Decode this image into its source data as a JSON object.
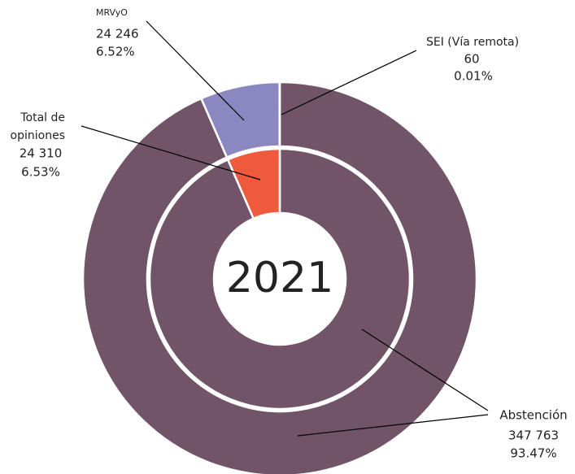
{
  "chart_data": {
    "type": "nested-donut",
    "title": "2021",
    "rings": [
      {
        "categories": [
          "Abstención",
          "MRVyO",
          "SEI (Vía remota)"
        ],
        "values": [
          347763,
          24246,
          60
        ],
        "value_labels": [
          "347 763",
          "24 246",
          "60"
        ],
        "shares": [
          93.47,
          6.52,
          0.01
        ],
        "share_labels": [
          "93.47%",
          "6.52%",
          "0.01%"
        ],
        "colors": [
          "#715468",
          "#8b87c0",
          "#715468"
        ]
      },
      {
        "categories": [
          null,
          "Total de opiniones"
        ],
        "values": [
          347763,
          24310
        ],
        "value_labels": [
          null,
          "24 310"
        ],
        "shares": [
          93.47,
          6.53
        ],
        "share_labels": [
          null,
          "6.53%"
        ],
        "colors": [
          "#715468",
          "#f05a3c"
        ]
      }
    ]
  }
}
